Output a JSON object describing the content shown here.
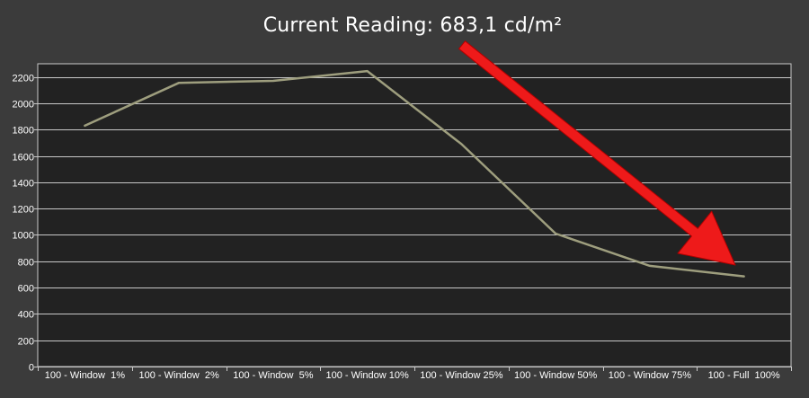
{
  "chart_data": {
    "type": "line",
    "title": "Current Reading: 683,1 cd/m²",
    "xlabel": "",
    "ylabel": "",
    "categories": [
      "100 - Window  1%",
      "100 - Window  2%",
      "100 - Window  5%",
      "100 - Window 10%",
      "100 - Window 25%",
      "100 - Window 50%",
      "100 - Window 75%",
      "100 - Full  100%"
    ],
    "series": [
      {
        "values": [
          1830,
          2155,
          2170,
          2245,
          1690,
          1010,
          765,
          685
        ]
      }
    ],
    "ylim": [
      0,
      2300
    ],
    "yticks": [
      0,
      200,
      400,
      600,
      800,
      1000,
      1200,
      1400,
      1600,
      1800,
      2000,
      2200
    ],
    "grid": true,
    "legend": "none"
  },
  "colors": {
    "background": "#3b3b3b",
    "plot_background": "#222222",
    "grid": "#c8c8c8",
    "line": "#9e9e7e",
    "arrow": "#ee1a1a",
    "text": "#ffffff"
  },
  "annotation": {
    "shape": "red-arrow"
  }
}
